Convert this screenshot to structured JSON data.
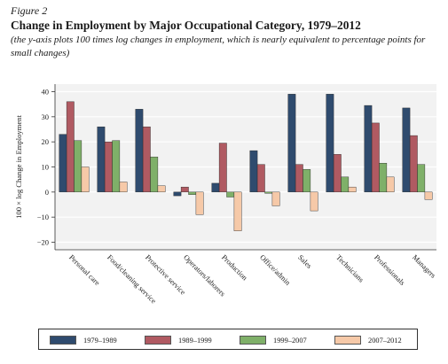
{
  "figure_label": "Figure 2",
  "title": "Change in Employment by Major Occupational Category, 1979–2012",
  "subtitle": "(the y-axis plots 100 times log changes in employment, which is nearly equivalent to percentage points for small changes)",
  "chart_data": {
    "type": "bar",
    "title": "Change in Employment by Major Occupational Category, 1979–2012",
    "subtitle": "(the y-axis plots 100 times log changes in employment, which is nearly equivalent to percentage points for small changes)",
    "xlabel": "",
    "ylabel": "100 × log Change in Employment",
    "ylim": [
      -23,
      43
    ],
    "yticks": [
      -20,
      -10,
      0,
      10,
      20,
      30,
      40
    ],
    "grid": true,
    "legend_position": "bottom",
    "categories": [
      "Personal care",
      "Food/cleaning service",
      "Protective service",
      "Operators/laborers",
      "Production",
      "Office/admin",
      "Sales",
      "Technicians",
      "Professionals",
      "Managers"
    ],
    "series": [
      {
        "name": "1979–1989",
        "color": "#2f4b6e",
        "values": [
          23,
          26,
          33,
          -1.5,
          3.5,
          16.5,
          39,
          39,
          34.5,
          33.5
        ]
      },
      {
        "name": "1989–1999",
        "color": "#b05a62",
        "values": [
          36,
          20,
          26,
          2,
          19.5,
          11,
          11,
          15,
          27.5,
          22.5
        ]
      },
      {
        "name": "1999–2007",
        "color": "#7fb069",
        "values": [
          20.5,
          20.5,
          14,
          -1,
          -2,
          -0.5,
          9,
          6,
          11.5,
          11
        ]
      },
      {
        "name": "2007–2012",
        "color": "#f6c9a8",
        "values": [
          10,
          4,
          2.5,
          -9,
          -15.5,
          -5.5,
          -7.5,
          2,
          6,
          -3
        ]
      }
    ]
  }
}
